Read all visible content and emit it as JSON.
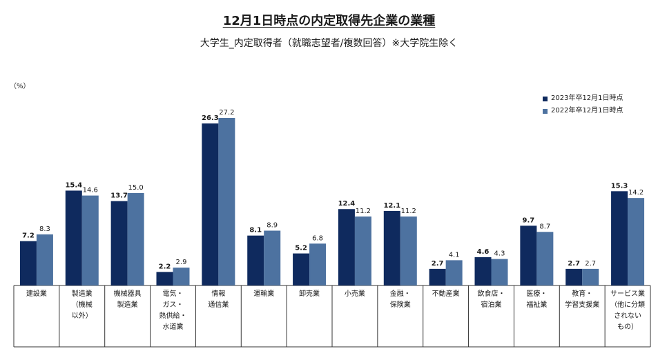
{
  "title": "12月1日時点の内定取得先企業の業種",
  "subtitle": "大学生_内定取得者（就職志望者/複数回答）※大学院生除く",
  "unit_label": "（%）",
  "colors": {
    "series_a": "#0f2a5e",
    "series_b": "#4d72a0"
  },
  "chart_data": {
    "type": "bar",
    "categories": [
      [
        "建設業"
      ],
      [
        "製造業",
        "（機械",
        "以外）"
      ],
      [
        "機械器具",
        "製造業"
      ],
      [
        "電気・",
        "ガス・",
        "熱供給・",
        "水道業"
      ],
      [
        "情報",
        "通信業"
      ],
      [
        "運輸業"
      ],
      [
        "卸売業"
      ],
      [
        "小売業"
      ],
      [
        "金融・",
        "保険業"
      ],
      [
        "不動産業"
      ],
      [
        "飲食店・",
        "宿泊業"
      ],
      [
        "医療・",
        "福祉業"
      ],
      [
        "教育・",
        "学習支援業"
      ],
      [
        "サービス業",
        "（他に分類",
        "されない",
        "もの）"
      ]
    ],
    "series": [
      {
        "name": "2023年卒12月1日時点",
        "values": [
          7.2,
          15.4,
          13.7,
          2.2,
          26.3,
          8.1,
          5.2,
          12.4,
          12.1,
          2.7,
          4.6,
          9.7,
          2.7,
          15.3
        ]
      },
      {
        "name": "2022年卒12月1日時点",
        "values": [
          8.3,
          14.6,
          15.0,
          2.9,
          27.2,
          8.9,
          6.8,
          11.2,
          11.2,
          4.1,
          4.3,
          8.7,
          2.7,
          14.2
        ]
      }
    ],
    "ylabel": "（%）",
    "ylim": [
      0,
      30
    ],
    "grid": false,
    "legend": "top-right"
  }
}
